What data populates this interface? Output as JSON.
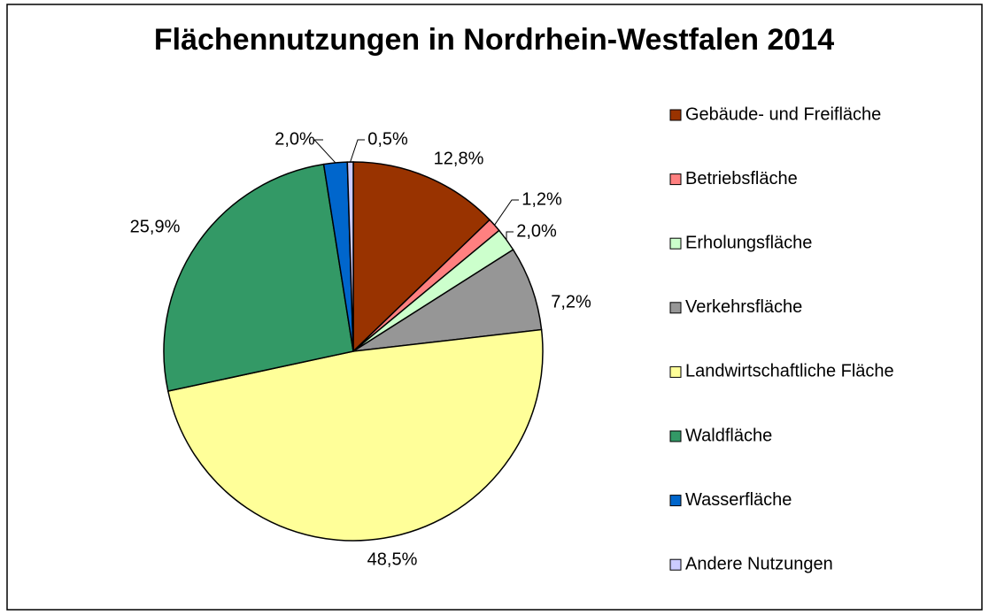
{
  "chart_data": {
    "type": "pie",
    "title": "Flächennutzungen in Nordrhein-Westfalen 2014",
    "categories": [
      "Gebäude- und Freifläche",
      "Betriebsfläche",
      "Erholungsfläche",
      "Verkehrsfläche",
      "Landwirtschaftliche Fläche",
      "Waldfläche",
      "Wasserfläche",
      "Andere Nutzungen"
    ],
    "values": [
      12.8,
      1.2,
      2.0,
      7.2,
      48.5,
      25.9,
      2.0,
      0.5
    ],
    "value_labels": [
      "12,8%",
      "1,2%",
      "2,0%",
      "7,2%",
      "48,5%",
      "25,9%",
      "2,0%",
      "0,5%"
    ],
    "colors": [
      "#993300",
      "#ff8080",
      "#ccffcc",
      "#969696",
      "#ffff99",
      "#339966",
      "#0066cc",
      "#ccccff"
    ],
    "legend": "right"
  }
}
